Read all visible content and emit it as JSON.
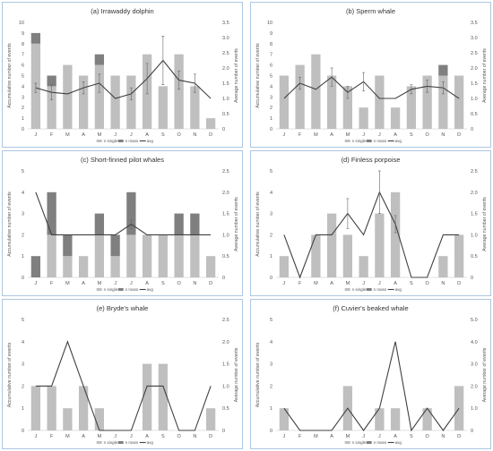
{
  "colors": {
    "single": "#bfbfbf",
    "mass": "#7f7f7f",
    "avg": "#404040",
    "frame": "#aec6e0",
    "axis": "#d9d9d9",
    "text": "#555555"
  },
  "shared": {
    "months": [
      "J",
      "F",
      "M",
      "A",
      "M",
      "J",
      "J",
      "A",
      "S",
      "O",
      "N",
      "D"
    ],
    "left_label": "Accumulative number of events",
    "right_label": "Average number of events",
    "legend": [
      "n single",
      "n mass",
      "avg"
    ]
  },
  "chart_data": [
    {
      "type": "bar",
      "title": "(a) Irrawaddy dolphin",
      "ylim": [
        0,
        10
      ],
      "yticks": [
        0,
        1,
        2,
        3,
        4,
        5,
        6,
        7,
        8,
        9,
        10
      ],
      "y2lim": [
        0,
        3.5
      ],
      "y2ticks": [
        "0",
        "0.5",
        "1.0",
        "1.5",
        "2.0",
        "2.5",
        "3.0",
        "3.5"
      ],
      "categories": [
        "J",
        "F",
        "M",
        "A",
        "M",
        "J",
        "J",
        "A",
        "S",
        "O",
        "N",
        "D"
      ],
      "series": [
        {
          "name": "n single",
          "values": [
            8,
            4,
            6,
            5,
            6,
            5,
            5,
            7,
            4,
            7,
            4,
            1
          ]
        },
        {
          "name": "n mass",
          "values": [
            1,
            1,
            0,
            0,
            1,
            0,
            0,
            0,
            0,
            0,
            0,
            0
          ]
        },
        {
          "name": "avg",
          "axis": "right",
          "values": [
            1.35,
            1.2,
            1.15,
            1.35,
            1.5,
            1.0,
            1.15,
            1.65,
            2.25,
            1.6,
            1.5,
            1.0
          ],
          "err": [
            0.15,
            0.25,
            0,
            0.2,
            0.3,
            0,
            0.2,
            0.5,
            0.8,
            0.3,
            0.3,
            0
          ]
        }
      ]
    },
    {
      "type": "bar",
      "title": "(b) Sperm whale",
      "ylim": [
        0,
        10
      ],
      "yticks": [
        0,
        1,
        2,
        3,
        4,
        5,
        6,
        7,
        8,
        9,
        10
      ],
      "y2lim": [
        0,
        3.5
      ],
      "y2ticks": [
        "0",
        "0.5",
        "1.0",
        "1.5",
        "2.0",
        "2.5",
        "3.0",
        "3.5"
      ],
      "categories": [
        "J",
        "F",
        "M",
        "A",
        "M",
        "J",
        "J",
        "A",
        "S",
        "O",
        "N",
        "D"
      ],
      "series": [
        {
          "name": "n single",
          "values": [
            5,
            6,
            7,
            5,
            4,
            2,
            5,
            2,
            4,
            5,
            5,
            5
          ]
        },
        {
          "name": "n mass",
          "values": [
            0,
            0,
            0,
            0,
            0,
            0,
            0,
            0,
            0,
            0,
            1,
            0
          ]
        },
        {
          "name": "avg",
          "axis": "right",
          "values": [
            1.0,
            1.5,
            1.3,
            1.7,
            1.2,
            1.55,
            1.0,
            1.0,
            1.3,
            1.4,
            1.35,
            1.0
          ],
          "err": [
            0,
            0.2,
            0,
            0.3,
            0.2,
            0.3,
            0,
            0,
            0.15,
            0.2,
            0.2,
            0
          ]
        }
      ]
    },
    {
      "type": "bar",
      "title": "(c) Short-finned pilot whales",
      "ylim": [
        0,
        5
      ],
      "yticks": [
        0,
        1,
        2,
        3,
        4,
        5
      ],
      "y2lim": [
        0,
        2.5
      ],
      "y2ticks": [
        "0",
        "0.5",
        "1.0",
        "1.5",
        "2.0",
        "2.5"
      ],
      "categories": [
        "J",
        "F",
        "M",
        "A",
        "M",
        "J",
        "J",
        "A",
        "S",
        "O",
        "N",
        "D"
      ],
      "series": [
        {
          "name": "n single",
          "values": [
            0,
            2,
            1,
            1,
            2,
            1,
            2,
            2,
            2,
            2,
            2,
            1
          ]
        },
        {
          "name": "n mass",
          "values": [
            1,
            2,
            1,
            0,
            1,
            1,
            2,
            0,
            0,
            1,
            1,
            0
          ]
        },
        {
          "name": "avg",
          "axis": "right",
          "values": [
            2.0,
            1.0,
            1.0,
            1.0,
            1.0,
            1.0,
            1.25,
            1.0,
            1.0,
            1.0,
            1.0,
            1.0
          ],
          "err": [
            0,
            0,
            0,
            0,
            0,
            0,
            0.1,
            0,
            0,
            0,
            0,
            0
          ]
        }
      ]
    },
    {
      "type": "bar",
      "title": "(d) Finless porpoise",
      "ylim": [
        0,
        5
      ],
      "yticks": [
        0,
        1,
        2,
        3,
        4,
        5
      ],
      "y2lim": [
        0,
        2.5
      ],
      "y2ticks": [
        "0",
        "0.5",
        "1.0",
        "1.5",
        "2.0",
        "2.5"
      ],
      "categories": [
        "J",
        "F",
        "M",
        "A",
        "M",
        "J",
        "J",
        "A",
        "S",
        "O",
        "N",
        "D"
      ],
      "series": [
        {
          "name": "n single",
          "values": [
            1,
            0,
            2,
            3,
            2,
            1,
            3,
            4,
            0,
            0,
            1,
            2
          ]
        },
        {
          "name": "n mass",
          "values": [
            0,
            0,
            0,
            0,
            0,
            0,
            0,
            0,
            0,
            0,
            0,
            0
          ]
        },
        {
          "name": "avg",
          "axis": "right",
          "values": [
            1.0,
            0,
            1.0,
            1.0,
            1.5,
            1.0,
            2.0,
            1.25,
            0,
            0,
            1.0,
            1.0
          ],
          "err": [
            0,
            0,
            0,
            0,
            0.35,
            0,
            0.5,
            0.2,
            0,
            0,
            0,
            0
          ]
        }
      ]
    },
    {
      "type": "bar",
      "title": "(e) Bryde's whale",
      "ylim": [
        0,
        5
      ],
      "yticks": [
        0,
        1,
        2,
        3,
        4,
        5
      ],
      "y2lim": [
        0,
        2.5
      ],
      "y2ticks": [
        "0",
        "0.5",
        "1.0",
        "1.5",
        "2.0",
        "2.5"
      ],
      "categories": [
        "J",
        "F",
        "M",
        "A",
        "M",
        "J",
        "J",
        "A",
        "S",
        "O",
        "N",
        "D"
      ],
      "series": [
        {
          "name": "n single",
          "values": [
            2,
            2,
            1,
            2,
            1,
            0,
            0,
            3,
            3,
            0,
            0,
            1
          ]
        },
        {
          "name": "n mass",
          "values": [
            0,
            0,
            0,
            0,
            0,
            0,
            0,
            0,
            0,
            0,
            0,
            0
          ]
        },
        {
          "name": "avg",
          "axis": "right",
          "values": [
            1.0,
            1.0,
            2.0,
            1.0,
            0,
            0,
            0,
            1.0,
            1.0,
            0,
            0,
            1.0
          ],
          "err": [
            0,
            0,
            0,
            0,
            0,
            0,
            0,
            0,
            0,
            0,
            0,
            0
          ]
        }
      ]
    },
    {
      "type": "bar",
      "title": "(f) Cuvier's beaked whale",
      "ylim": [
        0,
        5
      ],
      "yticks": [
        0,
        1,
        2,
        3,
        4,
        5
      ],
      "y2lim": [
        0,
        5.0
      ],
      "y2ticks": [
        "0",
        "1.0",
        "2.0",
        "3.0",
        "4.0",
        "5.0"
      ],
      "categories": [
        "J",
        "F",
        "M",
        "A",
        "M",
        "J",
        "J",
        "A",
        "S",
        "O",
        "N",
        "D"
      ],
      "series": [
        {
          "name": "n single",
          "values": [
            1,
            0,
            0,
            0,
            2,
            0,
            1,
            1,
            0,
            1,
            0,
            2
          ]
        },
        {
          "name": "n mass",
          "values": [
            0,
            0,
            0,
            0,
            0,
            0,
            0,
            0,
            0,
            0,
            0,
            0
          ]
        },
        {
          "name": "avg",
          "axis": "right",
          "values": [
            1.0,
            0,
            0,
            0,
            1.0,
            0,
            1.0,
            4.0,
            0,
            1.0,
            0,
            1.0
          ],
          "err": [
            0,
            0,
            0,
            0,
            0,
            0,
            0,
            0,
            0,
            0,
            0,
            0
          ]
        }
      ]
    }
  ]
}
